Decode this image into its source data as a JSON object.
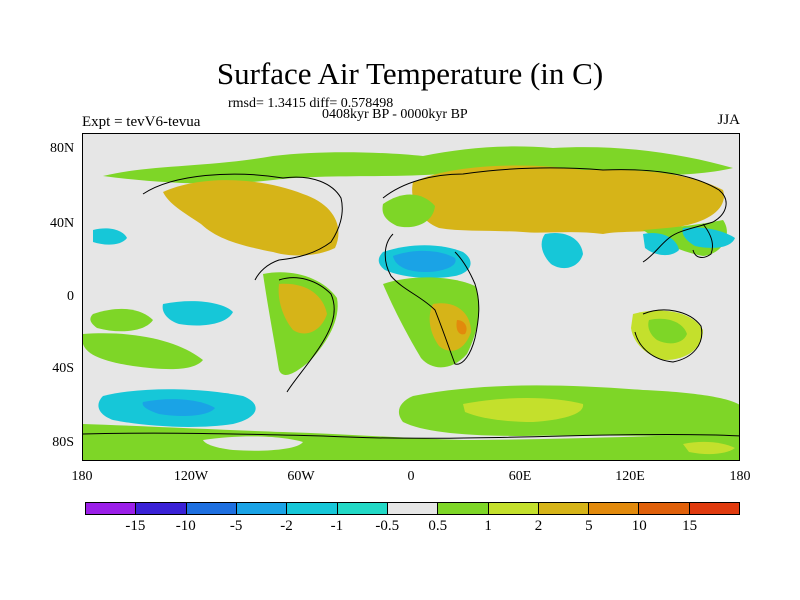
{
  "title": "Surface Air Temperature (in C)",
  "stats": "rmsd= 1.3415 diff= 0.578498",
  "period": "0408kyr BP - 0000kyr BP",
  "expt": "Expt = tevV6-tevua",
  "season": "JJA",
  "lat_labels": [
    "80N",
    "40N",
    "0",
    "40S",
    "80S"
  ],
  "lon_labels": [
    "180",
    "120W",
    "60W",
    "0",
    "60E",
    "120E",
    "180"
  ],
  "colorbar": {
    "labels": [
      "-15",
      "-10",
      "-5",
      "-2",
      "-1",
      "-0.5",
      "0.5",
      "1",
      "2",
      "5",
      "10",
      "15"
    ],
    "colors": [
      "#9b1fe8",
      "#3a21d6",
      "#1e6fe0",
      "#1aa3e6",
      "#16c7d8",
      "#22d9c6",
      "#e6e6e6",
      "#7ed627",
      "#c4e02c",
      "#d6b418",
      "#e28a0c",
      "#e0600a",
      "#e03a0e"
    ]
  }
}
